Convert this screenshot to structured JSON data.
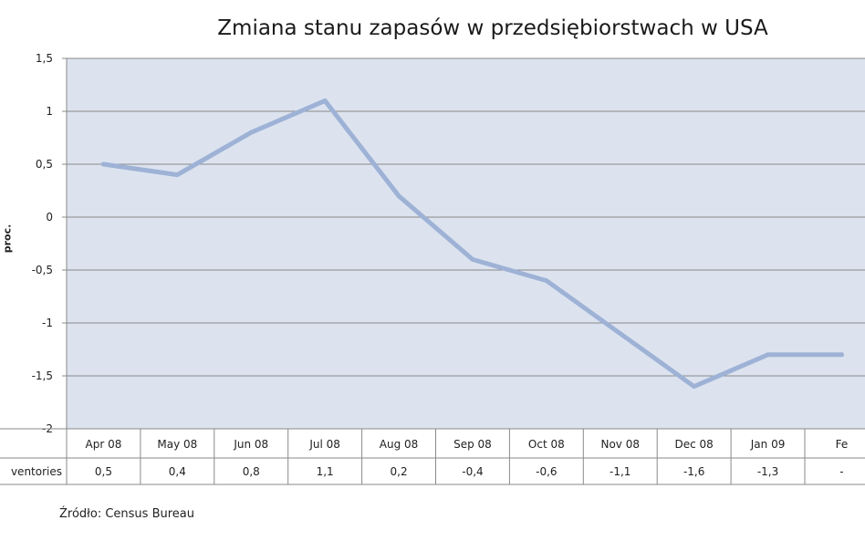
{
  "chart_data": {
    "type": "line",
    "title": "Zmiana stanu zapasów w przedsiębiorstwach w USA",
    "ylabel": "proc.",
    "xlabel": "",
    "ylim": [
      -2,
      1.5
    ],
    "yticks": [
      "1,5",
      "1",
      "0,5",
      "0",
      "-0,5",
      "-1",
      "-1,5",
      "-2"
    ],
    "ytick_values": [
      1.5,
      1,
      0.5,
      0,
      -0.5,
      -1,
      -1.5,
      -2
    ],
    "grid": true,
    "categories": [
      "Apr 08",
      "May 08",
      "Jun 08",
      "Jul 08",
      "Aug 08",
      "Sep 08",
      "Oct 08",
      "Nov 08",
      "Dec 08",
      "Jan 09",
      "Fe"
    ],
    "series": [
      {
        "name": "Inventories",
        "table_label": "ventories",
        "values": [
          0.5,
          0.4,
          0.8,
          1.1,
          0.2,
          -0.4,
          -0.6,
          -1.1,
          -1.6,
          -1.3,
          -1.3
        ],
        "value_labels": [
          "0,5",
          "0,4",
          "0,8",
          "1,1",
          "0,2",
          "-0,4",
          "-0,6",
          "-1,1",
          "-1,6",
          "-1,3",
          "-"
        ],
        "color": "#9eb2d6"
      }
    ],
    "plot_background": "#dce3ef",
    "data_table": true
  },
  "source": "Źródło:  Census Bureau"
}
